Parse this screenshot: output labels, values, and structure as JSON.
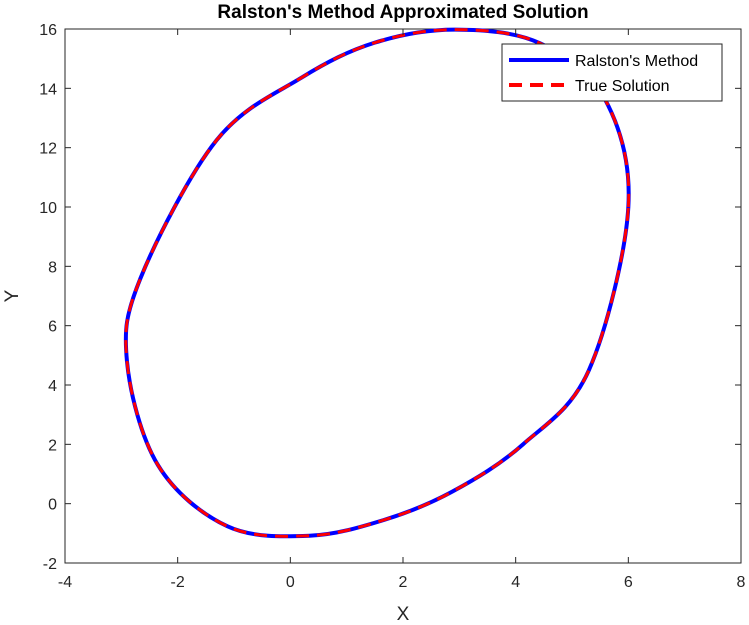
{
  "chart_data": {
    "type": "line",
    "title": "Ralston's Method Approximated Solution",
    "xlabel": "X",
    "ylabel": "Y",
    "xlim": [
      -4,
      8
    ],
    "ylim": [
      -2,
      16
    ],
    "xticks": [
      -4,
      -2,
      0,
      2,
      4,
      6,
      8
    ],
    "yticks": [
      -2,
      0,
      2,
      4,
      6,
      8,
      10,
      12,
      14,
      16
    ],
    "grid": false,
    "legend_location": "top-right",
    "series": [
      {
        "name": "Ralston's Method",
        "style": "solid",
        "color": "#0000ff",
        "x": [
          6.0,
          5.58,
          4.43,
          2.93,
          1.5,
          0.19,
          -1.31,
          -2.66,
          -2.9,
          -2.35,
          -1.12,
          0.34,
          1.66,
          2.87,
          4.13,
          5.3,
          6.0
        ],
        "y": [
          10.0,
          13.65,
          15.52,
          15.98,
          15.54,
          14.35,
          12.25,
          7.6,
          4.8,
          1.3,
          -0.76,
          -1.08,
          -0.55,
          0.4,
          2.0,
          4.5,
          10.0
        ]
      },
      {
        "name": "True Solution",
        "style": "dashed",
        "color": "#ff0000",
        "x": [
          6.0,
          5.58,
          4.43,
          2.93,
          1.5,
          0.19,
          -1.31,
          -2.66,
          -2.9,
          -2.35,
          -1.12,
          0.34,
          1.66,
          2.87,
          4.13,
          5.3,
          6.0
        ],
        "y": [
          10.0,
          13.65,
          15.52,
          15.98,
          15.54,
          14.35,
          12.25,
          7.6,
          4.8,
          1.3,
          -0.76,
          -1.08,
          -0.55,
          0.4,
          2.0,
          4.5,
          10.0
        ]
      }
    ]
  }
}
